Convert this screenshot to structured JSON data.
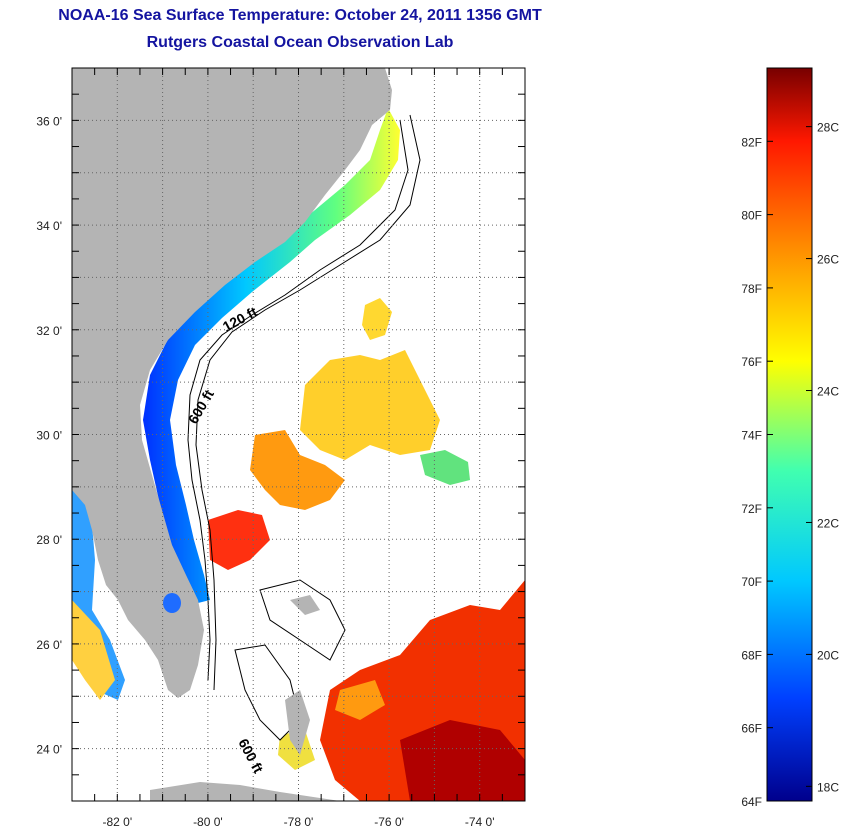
{
  "header": {
    "title": "NOAA-16 Sea Surface Temperature:  October 24, 2011 1356 GMT",
    "subtitle": "Rutgers Coastal Ocean Observation Lab"
  },
  "map": {
    "lon_range": [
      -83,
      -73
    ],
    "lat_range": [
      23,
      37
    ],
    "lon_ticks": [
      "-82 0'",
      "-80 0'",
      "-78 0'",
      "-76 0'",
      "-74 0'"
    ],
    "lat_ticks": [
      "36 0'",
      "34 0'",
      "32 0'",
      "30 0'",
      "28 0'",
      "26 0'",
      "24 0'"
    ],
    "contour_labels": [
      "120 ft",
      "600 ft",
      "600 ft"
    ],
    "land_color": "#b4b4b4"
  },
  "colorbar": {
    "range_F": [
      64,
      84
    ],
    "fahrenheit_labels": [
      "82F",
      "80F",
      "78F",
      "76F",
      "74F",
      "72F",
      "70F",
      "68F",
      "66F",
      "64F"
    ],
    "celsius_labels": [
      "28C",
      "26C",
      "24C",
      "22C",
      "20C",
      "18C"
    ],
    "colors": [
      "#00008c",
      "#0040ff",
      "#00c8ff",
      "#40ffb0",
      "#ffff00",
      "#ff9000",
      "#ff1800",
      "#780000"
    ]
  }
}
